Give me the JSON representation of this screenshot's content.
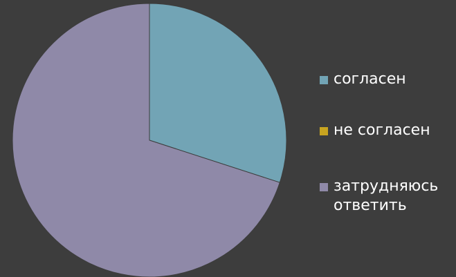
{
  "chart_data": {
    "type": "pie",
    "categories": [
      "согласен",
      "не согласен",
      "затрудняюсь ответить"
    ],
    "values": [
      30,
      0,
      70
    ],
    "colors": [
      "#72a4b5",
      "#c8a420",
      "#8f89a8"
    ],
    "title": "",
    "legend_position": "right",
    "start_angle_deg": 0
  },
  "legend": {
    "items": [
      {
        "label": "согласен",
        "color": "#72a4b5"
      },
      {
        "label": "не согласен",
        "color": "#c8a420"
      },
      {
        "label": "затрудняюсь ответить",
        "color": "#8f89a8"
      }
    ]
  }
}
